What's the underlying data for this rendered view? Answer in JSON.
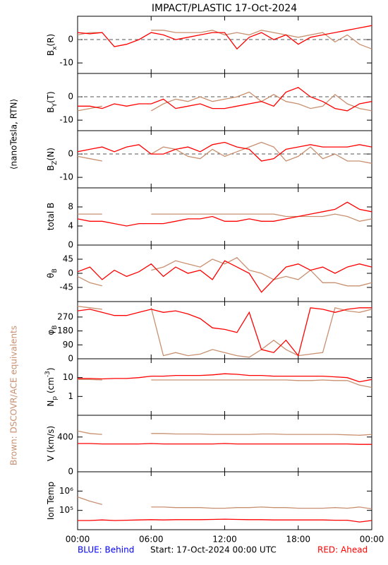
{
  "side_label_top": "⟨nanoTesla, RTN⟩",
  "side_label_bottom": "Brown: DSCOVR/ACE equivalents",
  "footer": {
    "left": "BLUE: Behind",
    "center": "Start: 17-Oct-2024 00:00 UTC",
    "right": "RED: Ahead"
  },
  "chart_data": {
    "type": "line",
    "title": "IMPACT/PLASTIC   17-Oct-2024",
    "x": [
      0,
      1,
      2,
      3,
      4,
      5,
      6,
      7,
      8,
      9,
      10,
      11,
      12,
      13,
      14,
      15,
      16,
      17,
      18,
      19,
      20,
      21,
      22,
      23,
      24
    ],
    "xlim": [
      0,
      24
    ],
    "xticks": [
      {
        "value": 0,
        "label": "00:00"
      },
      {
        "value": 6,
        "label": "06:00"
      },
      {
        "value": 12,
        "label": "12:00"
      },
      {
        "value": 18,
        "label": "18:00"
      },
      {
        "value": 24,
        "label": "00:00"
      }
    ],
    "panels": [
      {
        "ylabel": [
          {
            "t": "B"
          },
          {
            "t": "x",
            "sub": true
          },
          {
            "t": "(R)"
          }
        ],
        "ylim": [
          -14.5,
          10
        ],
        "yticks": [
          -10,
          0
        ],
        "refline": 0,
        "series": [
          {
            "color": "#c89070",
            "values": [
              2,
              3,
              3,
              null,
              null,
              null,
              4,
              4,
              3,
              3,
              3,
              4,
              2,
              3,
              2,
              4,
              3,
              2,
              1,
              2,
              3,
              -1,
              2,
              -2,
              -4
            ]
          },
          {
            "color": "#ff0000",
            "values": [
              3,
              2.5,
              3,
              -3,
              -2,
              0,
              3,
              2,
              0,
              1,
              2,
              3,
              3,
              -4,
              1,
              3,
              0,
              2,
              -2,
              1,
              2,
              3,
              4,
              5,
              6
            ]
          }
        ]
      },
      {
        "ylabel": [
          {
            "t": "B"
          },
          {
            "t": "Y",
            "sub": true
          },
          {
            "t": "(T)"
          }
        ],
        "ylim": [
          -14.5,
          10
        ],
        "yticks": [
          -10,
          0
        ],
        "refline": 0,
        "series": [
          {
            "color": "#c89070",
            "values": [
              -6,
              -5,
              -4,
              null,
              null,
              null,
              -6,
              -3,
              -1,
              -2,
              0,
              -2,
              -1,
              0,
              2,
              -2,
              1,
              -2,
              -3,
              -5,
              -4,
              1,
              -3,
              -5,
              -6
            ]
          },
          {
            "color": "#ff0000",
            "values": [
              -4,
              -4,
              -5,
              -3,
              -4,
              -3,
              -3,
              -1,
              -5,
              -4,
              -3,
              -5,
              -5,
              -4,
              -3,
              -2,
              -4,
              2,
              4,
              0,
              -2,
              -5,
              -6,
              -3,
              -2
            ]
          }
        ]
      },
      {
        "ylabel": [
          {
            "t": "B"
          },
          {
            "t": "Z",
            "sub": true
          },
          {
            "t": "(N)"
          }
        ],
        "ylim": [
          -14.5,
          10
        ],
        "yticks": [
          -10,
          0
        ],
        "refline": 0,
        "series": [
          {
            "color": "#c89070",
            "values": [
              -1,
              -2,
              -3,
              null,
              null,
              null,
              0,
              3,
              2,
              -1,
              -2,
              2,
              -1,
              1,
              3,
              5,
              3,
              -3,
              -1,
              3,
              -2,
              0,
              -3,
              -3,
              -4
            ]
          },
          {
            "color": "#ff0000",
            "values": [
              1,
              2,
              3,
              1,
              3,
              4,
              0,
              0,
              2,
              3,
              1,
              4,
              5,
              3,
              2,
              -3,
              -2,
              2,
              3,
              4,
              3,
              3,
              3,
              4,
              3
            ]
          }
        ]
      },
      {
        "ylabel": [
          {
            "t": "total B"
          }
        ],
        "ylim": [
          0,
          12
        ],
        "yticks": [
          0,
          4,
          8
        ],
        "series": [
          {
            "color": "#c89070",
            "values": [
              6.5,
              6.5,
              6.5,
              null,
              null,
              null,
              6.5,
              6.5,
              6.5,
              6.5,
              6.5,
              6.5,
              6.5,
              6.5,
              6.5,
              6.5,
              6.5,
              6,
              6,
              6,
              6,
              6.5,
              6,
              5,
              5.5
            ]
          },
          {
            "color": "#ff0000",
            "values": [
              5.5,
              5,
              5,
              4.5,
              4,
              4.5,
              4.5,
              4.5,
              5,
              5.5,
              5.5,
              6,
              5,
              5,
              5.5,
              5,
              5,
              5.5,
              6,
              6.5,
              7,
              7.5,
              9,
              7.5,
              7
            ]
          }
        ]
      },
      {
        "ylabel": [
          {
            "t": "θ"
          },
          {
            "t": "B",
            "sub": true
          }
        ],
        "ylim": [
          -90,
          90
        ],
        "yticks": [
          -45,
          0,
          45
        ],
        "series": [
          {
            "color": "#c89070",
            "values": [
              -10,
              -30,
              -40,
              null,
              null,
              null,
              10,
              20,
              40,
              30,
              20,
              45,
              30,
              50,
              10,
              0,
              -20,
              -10,
              -20,
              10,
              -30,
              -30,
              -40,
              -40,
              -30
            ]
          },
          {
            "color": "#ff0000",
            "values": [
              5,
              20,
              -20,
              10,
              -10,
              5,
              30,
              -10,
              20,
              0,
              10,
              -20,
              40,
              20,
              0,
              -60,
              -20,
              20,
              30,
              10,
              20,
              0,
              20,
              30,
              20
            ]
          }
        ]
      },
      {
        "ylabel": [
          {
            "t": "φ"
          },
          {
            "t": "B",
            "sub": true
          }
        ],
        "ylim": [
          0,
          370
        ],
        "yticks": [
          0,
          90,
          180,
          270
        ],
        "series": [
          {
            "color": "#c89070",
            "values": [
              340,
              330,
              320,
              null,
              null,
              null,
              330,
              20,
              40,
              20,
              30,
              60,
              40,
              20,
              10,
              60,
              120,
              60,
              20,
              30,
              40,
              330,
              310,
              300,
              320
            ]
          },
          {
            "color": "#ff0000",
            "values": [
              310,
              320,
              300,
              280,
              280,
              300,
              320,
              300,
              310,
              290,
              260,
              200,
              190,
              170,
              300,
              60,
              40,
              120,
              20,
              330,
              320,
              300,
              320,
              330,
              330
            ]
          }
        ]
      },
      {
        "ylabel": [
          {
            "t": "N"
          },
          {
            "t": "p",
            "sub": true
          },
          {
            "t": " (cm"
          },
          {
            "t": "-3",
            "sup": true
          },
          {
            "t": ")"
          }
        ],
        "ylim": [
          0.1,
          100
        ],
        "log": true,
        "yticks": [
          1,
          10
        ],
        "series": [
          {
            "color": "#c89070",
            "values": [
              8,
              8,
              7.5,
              null,
              null,
              null,
              7.5,
              7.5,
              7.5,
              7.5,
              7.5,
              7.5,
              7.5,
              7.5,
              7.5,
              7.5,
              7.5,
              7.5,
              7,
              7,
              7.5,
              7,
              7,
              4,
              3
            ]
          },
          {
            "color": "#ff0000",
            "values": [
              9,
              9,
              8.5,
              9,
              9,
              10,
              12,
              12,
              13,
              13,
              13,
              14,
              16,
              15,
              13,
              13,
              12,
              12,
              12,
              12,
              12,
              11,
              10,
              6,
              8
            ]
          }
        ]
      },
      {
        "ylabel": [
          {
            "t": "V (km/s)"
          }
        ],
        "ylim": [
          0,
          650
        ],
        "yticks": [
          0,
          400
        ],
        "series": [
          {
            "color": "#c89070",
            "values": [
              470,
              440,
              430,
              null,
              null,
              null,
              440,
              440,
              435,
              435,
              435,
              430,
              430,
              430,
              430,
              435,
              435,
              430,
              430,
              430,
              430,
              430,
              425,
              420,
              430
            ]
          },
          {
            "color": "#ff0000",
            "values": [
              325,
              325,
              320,
              320,
              320,
              320,
              325,
              320,
              320,
              320,
              320,
              320,
              325,
              320,
              320,
              320,
              320,
              320,
              320,
              320,
              320,
              320,
              320,
              315,
              315
            ]
          }
        ]
      },
      {
        "ylabel": [
          {
            "t": "Ion Temp"
          }
        ],
        "ylim": [
          10000,
          10000000
        ],
        "log": true,
        "yticks": [
          {
            "value": 100000,
            "label": "10⁵"
          },
          {
            "value": 1000000,
            "label": "10⁶"
          }
        ],
        "series": [
          {
            "color": "#c89070",
            "values": [
              500000,
              300000,
              200000,
              null,
              null,
              null,
              150000,
              150000,
              140000,
              140000,
              140000,
              130000,
              130000,
              140000,
              140000,
              150000,
              140000,
              140000,
              130000,
              130000,
              130000,
              140000,
              130000,
              150000,
              120000
            ]
          },
          {
            "color": "#ff0000",
            "values": [
              30000,
              30000,
              32000,
              30000,
              31000,
              32000,
              33000,
              32000,
              33000,
              33000,
              33000,
              34000,
              35000,
              34000,
              33000,
              33000,
              32000,
              32000,
              32000,
              32000,
              32000,
              31000,
              31000,
              25000,
              30000
            ]
          }
        ]
      }
    ]
  }
}
